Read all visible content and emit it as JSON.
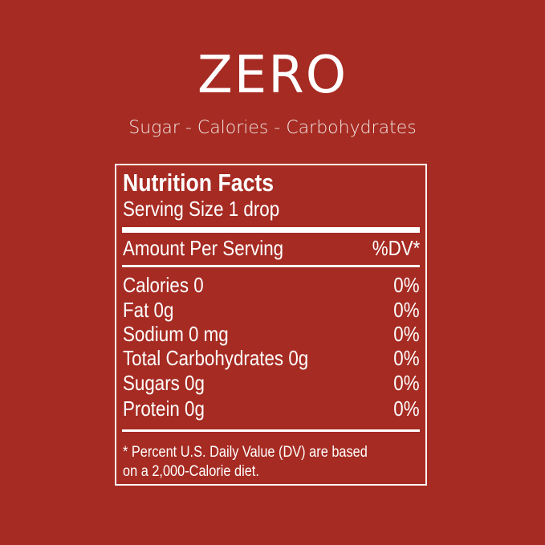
{
  "header": {
    "title": "ZERO",
    "subtitle": "Sugar - Calories - Carbohydrates"
  },
  "label": {
    "heading": "Nutrition Facts",
    "serving_size": "Serving Size 1 drop",
    "amount_header": "Amount Per Serving",
    "dv_header": "%DV*",
    "rows": [
      {
        "name": "Calories  0",
        "dv": "0%"
      },
      {
        "name": "Fat  0g",
        "dv": "0%"
      },
      {
        "name": "Sodium 0 mg",
        "dv": "0%"
      },
      {
        "name": "Total Carbohydrates 0g",
        "dv": "0%"
      },
      {
        "name": "Sugars 0g",
        "dv": "0%"
      },
      {
        "name": "Protein 0g",
        "dv": "0%"
      }
    ],
    "footnote_line1": "* Percent U.S. Daily Value (DV) are based",
    "footnote_line2": "on a 2,000-Calorie diet."
  },
  "colors": {
    "background": "#a62b22",
    "text": "#ffffff"
  }
}
